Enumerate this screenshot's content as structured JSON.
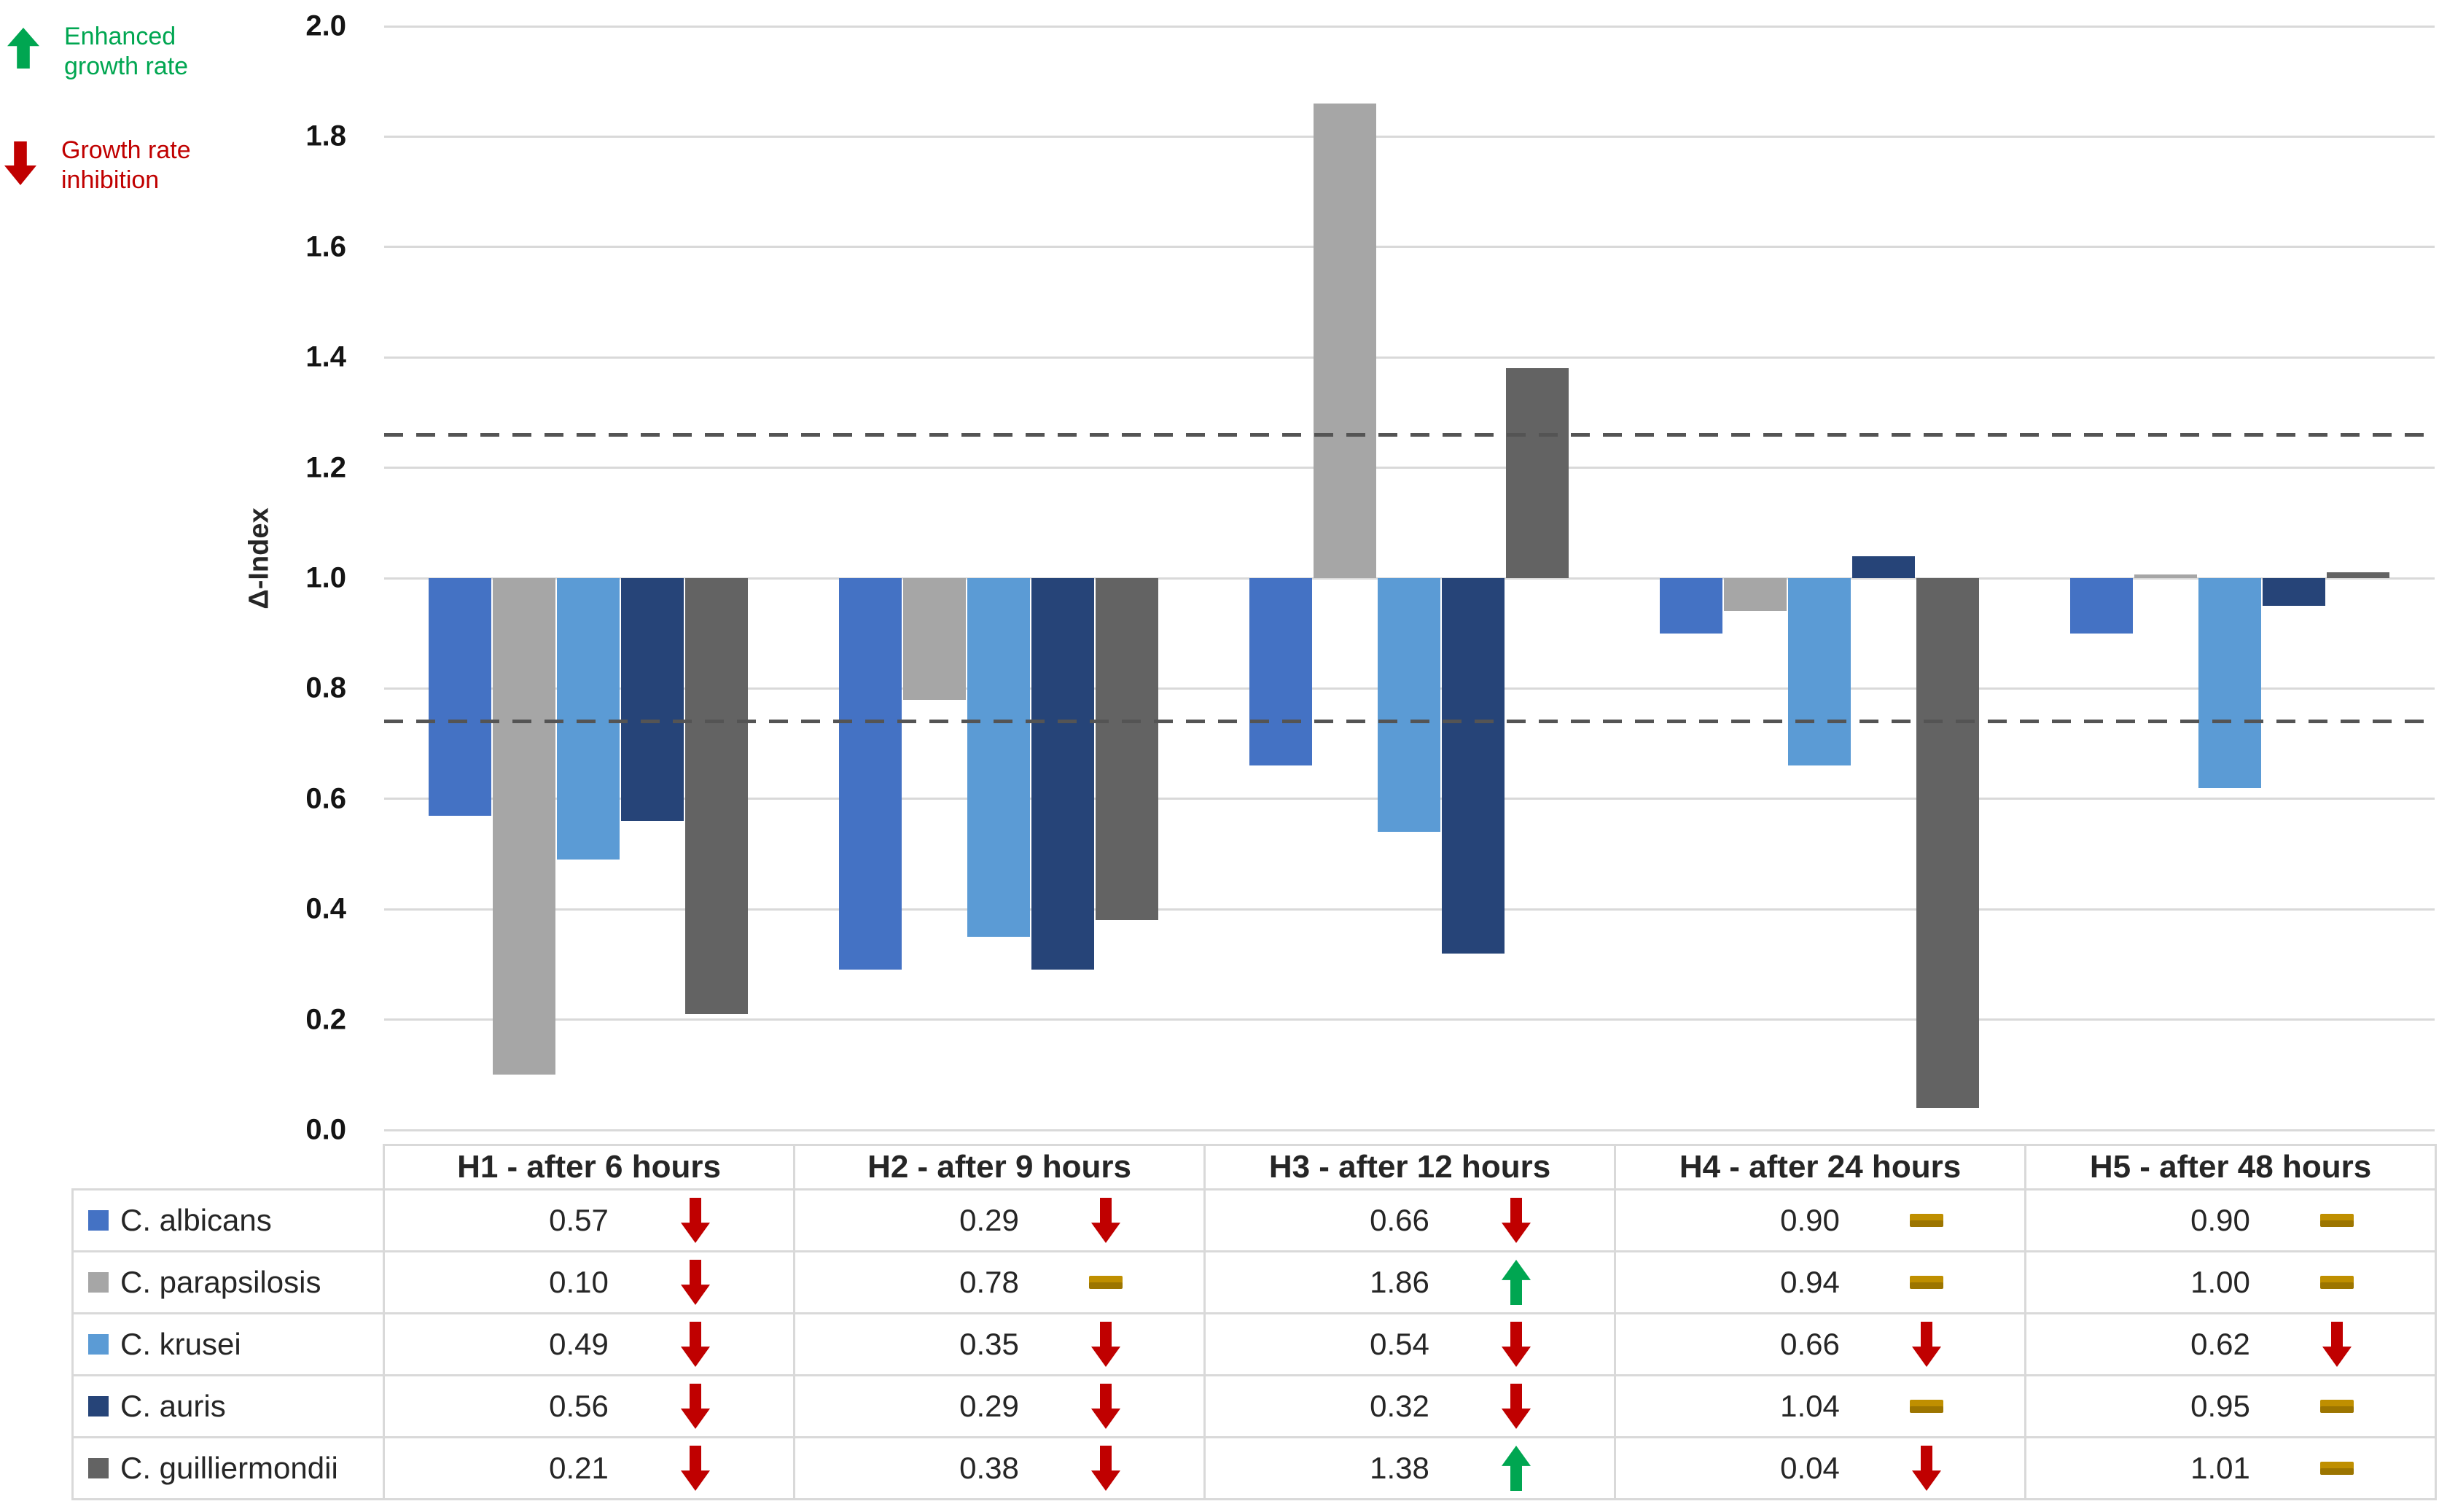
{
  "legend_top": {
    "items": [
      {
        "id": "enhanced",
        "icon": "up-arrow",
        "color": "#00A651",
        "label": "Enhanced\ngrowth rate"
      },
      {
        "id": "inhibition",
        "icon": "down-arrow",
        "color": "#C00000",
        "label": "Growth rate\ninhibition"
      }
    ]
  },
  "chart_data": {
    "type": "bar",
    "title": "",
    "xlabel": "",
    "ylabel": "Δ-Index",
    "ylim": [
      0.0,
      2.0
    ],
    "ytick_step": 0.2,
    "ytick_labels": [
      "2.0",
      "1.8",
      "1.6",
      "1.4",
      "1.2",
      "1.0",
      "0.8",
      "0.6",
      "0.4",
      "0.2",
      "0.0"
    ],
    "axis_crossing": 1.0,
    "threshold_dashed_lines": [
      1.26,
      0.74
    ],
    "grid": true,
    "legend_position": "table-left-column",
    "categories": [
      "H1 - after 6 hours",
      "H2 - after 9 hours",
      "H3 - after 12 hours",
      "H4 - after 24 hours",
      "H5 - after 48 hours"
    ],
    "series": [
      {
        "name": "C. albicans",
        "color": "#4472C4",
        "values": [
          0.57,
          0.29,
          0.66,
          0.9,
          0.9
        ],
        "trends": [
          "down",
          "down",
          "down",
          "neutral",
          "neutral"
        ]
      },
      {
        "name": "C. parapsilosis",
        "color": "#A6A6A6",
        "values": [
          0.1,
          0.78,
          1.86,
          0.94,
          1.0
        ],
        "trends": [
          "down",
          "neutral",
          "up",
          "neutral",
          "neutral"
        ]
      },
      {
        "name": "C. krusei",
        "color": "#5B9BD5",
        "values": [
          0.49,
          0.35,
          0.54,
          0.66,
          0.62
        ],
        "trends": [
          "down",
          "down",
          "down",
          "down",
          "down"
        ]
      },
      {
        "name": "C. auris",
        "color": "#264478",
        "values": [
          0.56,
          0.29,
          0.32,
          1.04,
          0.95
        ],
        "trends": [
          "down",
          "down",
          "down",
          "neutral",
          "neutral"
        ]
      },
      {
        "name": "C. guilliermondii",
        "color": "#636363",
        "values": [
          0.21,
          0.38,
          1.38,
          0.04,
          1.01
        ],
        "trends": [
          "down",
          "down",
          "up",
          "down",
          "neutral"
        ]
      }
    ]
  },
  "trend_icon_colors": {
    "up": "#00A651",
    "down": "#C00000",
    "neutral": "#BF8F00"
  },
  "styles": {
    "gridline_color": "#D9D9D9",
    "dashed_line_color": "#545454",
    "table_border_color": "#D9D9D9",
    "text_color": "#262626"
  }
}
